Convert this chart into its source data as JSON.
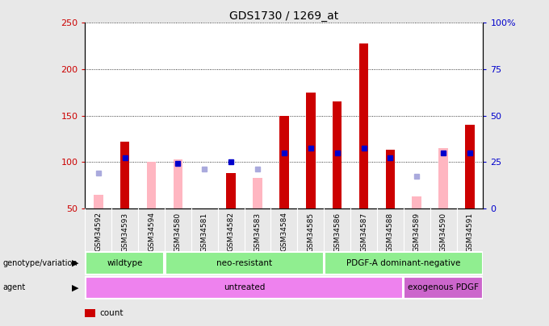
{
  "title": "GDS1730 / 1269_at",
  "samples": [
    "GSM34592",
    "GSM34593",
    "GSM34594",
    "GSM34580",
    "GSM34581",
    "GSM34582",
    "GSM34583",
    "GSM34584",
    "GSM34585",
    "GSM34586",
    "GSM34587",
    "GSM34588",
    "GSM34589",
    "GSM34590",
    "GSM34591"
  ],
  "count": [
    null,
    122,
    null,
    null,
    null,
    88,
    null,
    150,
    175,
    165,
    228,
    113,
    null,
    null,
    140
  ],
  "count_pink": [
    65,
    null,
    100,
    103,
    null,
    null,
    83,
    null,
    null,
    null,
    null,
    null,
    63,
    115,
    null
  ],
  "percentile_rank": [
    null,
    105,
    null,
    99,
    null,
    100,
    null,
    110,
    115,
    110,
    115,
    105,
    null,
    110,
    110
  ],
  "rank_absent": [
    88,
    null,
    null,
    null,
    93,
    null,
    93,
    null,
    null,
    null,
    null,
    null,
    85,
    null,
    null
  ],
  "ylim_left": [
    50,
    250
  ],
  "ylim_right": [
    0,
    100
  ],
  "yticks_left": [
    50,
    100,
    150,
    200,
    250
  ],
  "yticks_right": [
    0,
    25,
    50,
    75,
    100
  ],
  "yticklabels_right": [
    "0",
    "25",
    "50",
    "75",
    "100%"
  ],
  "group_boundaries": [
    {
      "label": "wildtype",
      "start": 0,
      "end": 3
    },
    {
      "label": "neo-resistant",
      "start": 3,
      "end": 9
    },
    {
      "label": "PDGF-A dominant-negative",
      "start": 9,
      "end": 15
    }
  ],
  "agent_boundaries": [
    {
      "label": "untreated",
      "start": 0,
      "end": 12,
      "color": "#EE82EE"
    },
    {
      "label": "exogenous PDGF",
      "start": 12,
      "end": 15,
      "color": "#CC66CC"
    }
  ],
  "group_color": "#90EE90",
  "count_color": "#CC0000",
  "count_pink_color": "#FFB6C1",
  "percentile_color": "#0000CC",
  "rank_absent_color": "#AAAADD",
  "fig_bg": "#E8E8E8",
  "plot_bg": "#FFFFFF"
}
